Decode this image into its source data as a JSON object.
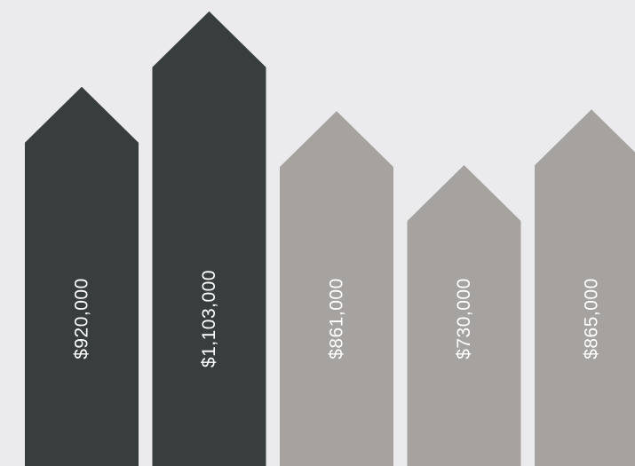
{
  "chart_data": {
    "type": "bar",
    "orientation": "vertical",
    "bar_shape": "arrow",
    "labels_rotated": true,
    "categories": [
      "",
      "",
      "",
      "",
      ""
    ],
    "values": [
      920000,
      1103000,
      861000,
      730000,
      865000
    ],
    "value_labels": [
      "$920,000",
      "$1,103,000",
      "$861,000",
      "$730,000",
      "$865,000"
    ],
    "highlighted": [
      true,
      true,
      false,
      false,
      false
    ],
    "title": "",
    "xlabel": "",
    "ylabel": "",
    "grid": false,
    "legend": "none"
  },
  "colors": {
    "background": "#ebebed",
    "highlight_bar": "#383e3e",
    "normal_bar": "#a5a2a0",
    "label_text": "#ffffff"
  }
}
